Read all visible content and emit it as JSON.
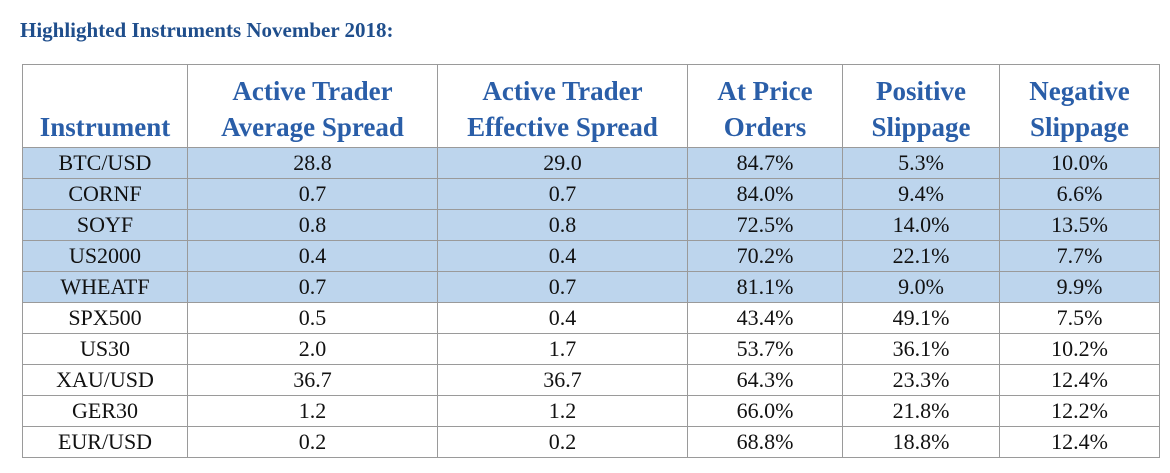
{
  "title": "Highlighted Instruments November 2018:",
  "table": {
    "headers": [
      {
        "lines": [
          "",
          "Instrument"
        ]
      },
      {
        "lines": [
          "Active Trader",
          "Average Spread"
        ]
      },
      {
        "lines": [
          "Active Trader",
          "Effective Spread"
        ]
      },
      {
        "lines": [
          "At Price",
          "Orders"
        ]
      },
      {
        "lines": [
          "Positive",
          "Slippage"
        ]
      },
      {
        "lines": [
          "Negative",
          "Slippage"
        ]
      }
    ],
    "highlight_color": "#bdd5ed",
    "header_color": "#2a5ea8",
    "rows": [
      {
        "highlighted": true,
        "cells": [
          "BTC/USD",
          "28.8",
          "29.0",
          "84.7%",
          "5.3%",
          "10.0%"
        ]
      },
      {
        "highlighted": true,
        "cells": [
          "CORNF",
          "0.7",
          "0.7",
          "84.0%",
          "9.4%",
          "6.6%"
        ]
      },
      {
        "highlighted": true,
        "cells": [
          "SOYF",
          "0.8",
          "0.8",
          "72.5%",
          "14.0%",
          "13.5%"
        ]
      },
      {
        "highlighted": true,
        "cells": [
          "US2000",
          "0.4",
          "0.4",
          "70.2%",
          "22.1%",
          "7.7%"
        ]
      },
      {
        "highlighted": true,
        "cells": [
          "WHEATF",
          "0.7",
          "0.7",
          "81.1%",
          "9.0%",
          "9.9%"
        ]
      },
      {
        "highlighted": false,
        "cells": [
          "SPX500",
          "0.5",
          "0.4",
          "43.4%",
          "49.1%",
          "7.5%"
        ]
      },
      {
        "highlighted": false,
        "cells": [
          "US30",
          "2.0",
          "1.7",
          "53.7%",
          "36.1%",
          "10.2%"
        ]
      },
      {
        "highlighted": false,
        "cells": [
          "XAU/USD",
          "36.7",
          "36.7",
          "64.3%",
          "23.3%",
          "12.4%"
        ]
      },
      {
        "highlighted": false,
        "cells": [
          "GER30",
          "1.2",
          "1.2",
          "66.0%",
          "21.8%",
          "12.2%"
        ]
      },
      {
        "highlighted": false,
        "cells": [
          "EUR/USD",
          "0.2",
          "0.2",
          "68.8%",
          "18.8%",
          "12.4%"
        ]
      }
    ]
  }
}
